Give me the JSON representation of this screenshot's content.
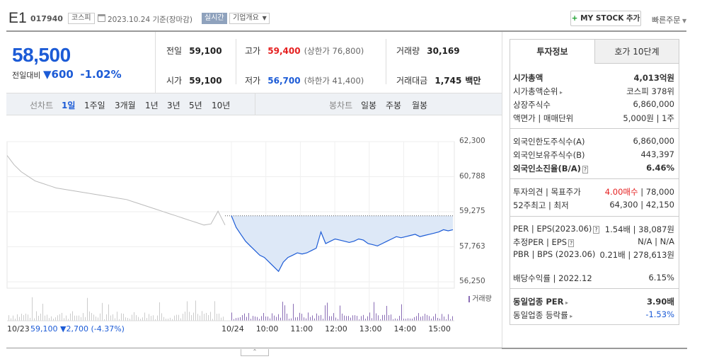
{
  "header": {
    "name": "E1",
    "code": "017940",
    "market": "코스피",
    "date": "2023.10.24",
    "basis": "기준(장마감)",
    "live": "실시간",
    "overview": "기업개요",
    "mystock": "MY STOCK 추가",
    "quick": "빠른주문"
  },
  "price": {
    "current": "58,500",
    "vs_label": "전일대비",
    "change": "600",
    "rate": "-1.02%"
  },
  "quote": {
    "prev_label": "전일",
    "prev": "59,100",
    "high_label": "고가",
    "high": "59,400",
    "upper": "(상한가 76,800)",
    "vol_label": "거래량",
    "vol": "30,169",
    "open_label": "시가",
    "open": "59,100",
    "low_label": "저가",
    "low": "56,700",
    "lower": "(하한가 41,400)",
    "amt_label": "거래대금",
    "amt": "1,745",
    "amt_unit": "백만"
  },
  "chartbar": {
    "line_label": "선차트",
    "line_periods": [
      "1일",
      "1주일",
      "3개월",
      "1년",
      "3년",
      "5년",
      "10년"
    ],
    "candle_label": "봉차트",
    "candle_periods": [
      "일봉",
      "주봉",
      "월봉"
    ]
  },
  "chart_data": {
    "type": "line",
    "y_ticks": [
      "62,300",
      "60,788",
      "59,275",
      "57,763",
      "56,250"
    ],
    "ylim": [
      56250,
      62300
    ],
    "x_ticks": [
      "10/24",
      "10:00",
      "11:00",
      "12:00",
      "13:00",
      "14:00",
      "15:00"
    ],
    "prev_day_label": "10/23",
    "prev_day_info": "59,100",
    "prev_day_change": "▼2,700 (-4.37%)",
    "volume_label": "거래량",
    "reference_line": 59100,
    "prev_series": [
      61700,
      61300,
      61000,
      60800,
      60600,
      60500,
      60400,
      60300,
      60250,
      60200,
      60150,
      60100,
      60050,
      60000,
      59950,
      59900,
      59850,
      59800,
      59700,
      59600,
      59500,
      59400,
      59300,
      59200,
      59100,
      59000,
      58900,
      58800,
      58700,
      58750,
      59300,
      58700
    ],
    "today_series": [
      59100,
      58600,
      58300,
      58000,
      57800,
      57600,
      57400,
      57300,
      57100,
      56900,
      56700,
      57100,
      57300,
      57400,
      57500,
      57450,
      57500,
      57600,
      57700,
      58400,
      57900,
      58000,
      58100,
      58050,
      58000,
      57950,
      58000,
      58100,
      58050,
      57900,
      57850,
      57800,
      57900,
      58000,
      58100,
      58200,
      58150,
      58200,
      58250,
      58300,
      58200,
      58250,
      58300,
      58350,
      58400,
      58500,
      58450,
      58500
    ]
  },
  "right_tabs": [
    "투자정보",
    "호가 10단계"
  ],
  "info": {
    "mktcap_label": "시가총액",
    "mktcap": "4,013억원",
    "rank_label": "시가총액순위",
    "rank": "코스피 378위",
    "shares_label": "상장주식수",
    "shares": "6,860,000",
    "par_label": "액면가 | 매매단위",
    "par": "5,000원 | 1주",
    "foreign_limit_label": "외국인한도주식수(A)",
    "foreign_limit": "6,860,000",
    "foreign_hold_label": "외국인보유주식수(B)",
    "foreign_hold": "443,397",
    "foreign_ratio_label": "외국인소진율(B/A)",
    "foreign_ratio": "6.46%",
    "opinion_label": "투자의견 | 목표주가",
    "opinion": "4.00매수",
    "target": "78,000",
    "w52_label": "52주최고 | 최저",
    "w52": "64,300 | 42,150",
    "per_label": "PER | EPS(2023.06)",
    "per": "1.54배 | 38,087원",
    "est_label": "추정PER | EPS",
    "est": "N/A | N/A",
    "pbr_label": "PBR | BPS (2023.06)",
    "pbr": "0.21배 | 278,613원",
    "div_label": "배당수익률 | 2022.12",
    "div": "6.15%",
    "ind_per_label": "동일업종 PER",
    "ind_per": "3.90배",
    "ind_rate_label": "동일업종 등락률",
    "ind_rate": "-1.53%"
  },
  "colors": {
    "down": "#1c5bd6",
    "up": "#e52020",
    "fill": "#dde8f7"
  }
}
